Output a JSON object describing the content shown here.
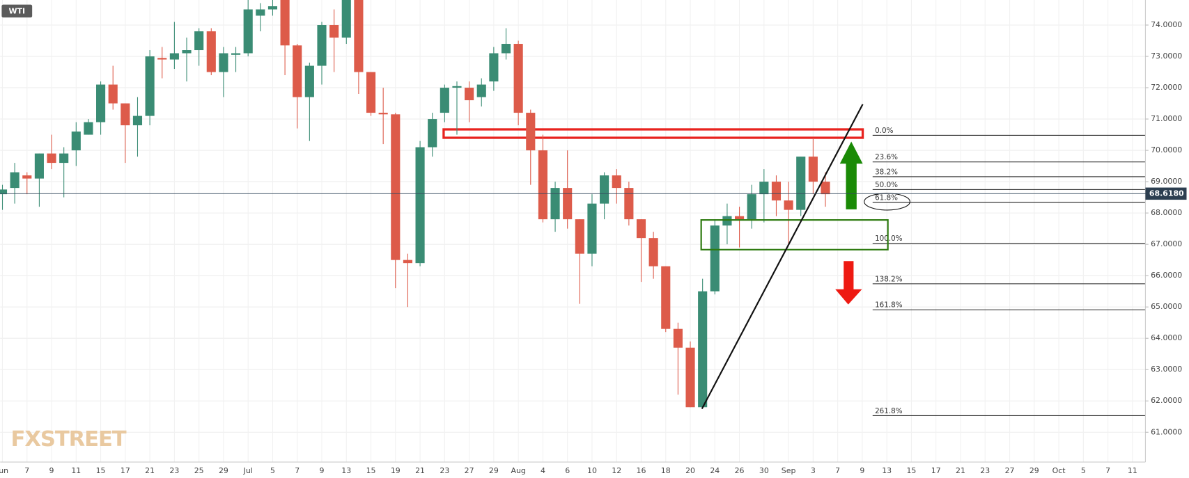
{
  "chart_data": {
    "type": "candlestick",
    "title": "WTI",
    "watermark": "FXSTREET",
    "categories": [
      "Jun",
      null,
      "7",
      null,
      "9",
      null,
      "11",
      null,
      "15",
      null,
      "17",
      null,
      "21",
      null,
      "23",
      null,
      "25",
      null,
      "29",
      null,
      "Jul",
      null,
      "5",
      null,
      "7",
      null,
      "9",
      null,
      "13",
      null,
      "15",
      null,
      "19",
      null,
      "21",
      null,
      "23",
      null,
      "27",
      null,
      "29",
      null,
      "Aug",
      null,
      "4",
      null,
      "6",
      null,
      "10",
      null,
      "12",
      null,
      "16",
      null,
      "18",
      null,
      "20",
      null,
      "24",
      null,
      "26",
      null,
      "30",
      null,
      "Sep",
      null,
      "3",
      null,
      "7",
      null,
      "9",
      null,
      "13",
      null,
      "15",
      null,
      "17",
      null,
      "21",
      null,
      "23",
      null,
      "27",
      null,
      "29",
      null,
      "Oct",
      null,
      "5",
      null,
      "7",
      null,
      "11"
    ],
    "open": [
      68.6,
      68.8,
      69.2,
      69.1,
      69.9,
      69.6,
      70.0,
      70.5,
      70.9,
      72.1,
      71.5,
      70.8,
      71.1,
      72.95,
      72.9,
      73.1,
      73.2,
      73.8,
      72.5,
      73.05,
      73.1,
      74.3,
      74.5,
      74.8,
      73.35,
      71.7,
      72.7,
      74.0,
      73.6,
      74.9,
      72.5,
      71.2,
      71.15,
      66.5,
      66.4,
      70.1,
      71.2,
      72.0,
      72.0,
      71.7,
      72.2,
      73.1,
      73.4,
      71.2,
      70.0,
      67.8,
      68.8,
      67.8,
      66.7,
      68.3,
      69.2,
      68.8,
      67.8,
      67.2,
      66.3,
      64.3,
      63.7,
      61.8,
      65.5,
      67.6,
      67.9,
      67.8,
      68.6,
      69.0,
      68.4,
      68.1,
      69.8,
      69.0,
      null,
      null,
      null,
      null,
      null,
      null,
      null,
      null,
      null,
      null,
      null,
      null,
      null,
      null,
      null,
      null,
      null,
      null,
      null,
      null,
      null,
      null,
      null,
      null,
      null
    ],
    "high": [
      68.9,
      69.6,
      69.3,
      69.9,
      70.5,
      70.1,
      70.9,
      71.0,
      72.2,
      72.7,
      71.5,
      71.7,
      73.2,
      73.3,
      74.1,
      73.6,
      73.9,
      73.9,
      73.3,
      73.3,
      74.8,
      74.7,
      75.0,
      74.9,
      73.4,
      72.8,
      74.1,
      74.5,
      75.0,
      75.0,
      72.5,
      72.0,
      71.2,
      66.7,
      70.3,
      71.2,
      72.1,
      72.2,
      72.2,
      72.3,
      73.3,
      73.9,
      73.5,
      71.3,
      70.5,
      69.0,
      70.0,
      67.8,
      68.6,
      69.3,
      69.4,
      69.0,
      67.8,
      67.4,
      66.3,
      64.5,
      63.9,
      65.9,
      67.8,
      68.3,
      68.2,
      68.9,
      69.4,
      69.2,
      69.0,
      69.8,
      70.4,
      69.3,
      null,
      null,
      null,
      null,
      null,
      null,
      null,
      null,
      null,
      null,
      null,
      null,
      null,
      null,
      null,
      null,
      null,
      null,
      null,
      null,
      null,
      null,
      null,
      null,
      null
    ],
    "low": [
      68.1,
      68.3,
      68.6,
      68.2,
      69.4,
      68.5,
      69.5,
      70.5,
      70.5,
      71.3,
      69.6,
      69.8,
      70.8,
      72.3,
      72.6,
      72.2,
      72.7,
      72.4,
      71.7,
      72.5,
      73.0,
      73.8,
      74.3,
      72.4,
      70.7,
      70.3,
      72.1,
      72.5,
      73.4,
      71.8,
      71.1,
      70.2,
      65.6,
      65.0,
      66.3,
      69.8,
      70.9,
      70.5,
      70.9,
      71.4,
      71.9,
      72.9,
      70.8,
      68.9,
      67.7,
      67.4,
      67.5,
      65.1,
      66.3,
      67.8,
      68.3,
      67.6,
      65.8,
      65.9,
      64.2,
      62.2,
      61.8,
      61.8,
      65.4,
      67.0,
      66.9,
      67.5,
      67.7,
      67.9,
      67.0,
      67.9,
      68.6,
      68.2,
      null,
      null,
      null,
      null,
      null,
      null,
      null,
      null,
      null,
      null,
      null,
      null,
      null,
      null,
      null,
      null,
      null,
      null,
      null,
      null,
      null,
      null,
      null,
      null,
      null
    ],
    "close": [
      68.75,
      69.3,
      69.1,
      69.9,
      69.6,
      69.9,
      70.6,
      70.9,
      72.1,
      71.5,
      70.8,
      71.1,
      73.0,
      72.9,
      73.1,
      73.2,
      73.8,
      72.5,
      73.1,
      73.1,
      74.5,
      74.5,
      74.6,
      73.35,
      71.7,
      72.7,
      74.0,
      73.6,
      74.9,
      72.5,
      71.2,
      71.15,
      66.5,
      66.4,
      70.1,
      71.0,
      72.0,
      72.05,
      71.6,
      72.1,
      73.1,
      73.4,
      71.2,
      70.0,
      67.8,
      68.8,
      67.8,
      66.7,
      68.3,
      69.2,
      68.8,
      67.8,
      67.2,
      66.3,
      64.3,
      63.7,
      61.8,
      65.5,
      67.6,
      67.9,
      67.8,
      68.6,
      69.0,
      68.4,
      68.1,
      69.8,
      69.0,
      68.6,
      null,
      null,
      null,
      null,
      null,
      null,
      null,
      null,
      null,
      null,
      null,
      null,
      null,
      null,
      null,
      null,
      null,
      null,
      null,
      null,
      null,
      null,
      null,
      null,
      null
    ],
    "up_color": "#3a8c74",
    "down_color": "#dd5b4a",
    "ylim": [
      60.05,
      74.8
    ],
    "yticks": [
      {
        "value": 61,
        "label": "61.0000"
      },
      {
        "value": 62,
        "label": "62.0000"
      },
      {
        "value": 63,
        "label": "63.0000"
      },
      {
        "value": 64,
        "label": "64.0000"
      },
      {
        "value": 65,
        "label": "65.0000"
      },
      {
        "value": 66,
        "label": "66.0000"
      },
      {
        "value": 67,
        "label": "67.0000"
      },
      {
        "value": 68,
        "label": "68.0000"
      },
      {
        "value": 69,
        "label": "69.0000"
      },
      {
        "value": 70,
        "label": "70.0000"
      },
      {
        "value": 71,
        "label": "71.0000"
      },
      {
        "value": 72,
        "label": "72.0000"
      },
      {
        "value": 73,
        "label": "73.0000"
      },
      {
        "value": 74,
        "label": "74.0000"
      }
    ],
    "grid": true,
    "last_price": {
      "value": 68.618,
      "label": "68.6180"
    },
    "fib_levels": [
      {
        "ratio_label": "0.0%",
        "price": 70.48
      },
      {
        "ratio_label": "23.6%",
        "price": 69.63
      },
      {
        "ratio_label": "38.2%",
        "price": 69.16
      },
      {
        "ratio_label": "50.0%",
        "price": 68.75
      },
      {
        "ratio_label": "61.8%",
        "price": 68.34
      },
      {
        "ratio_label": "100.0%",
        "price": 67.03
      },
      {
        "ratio_label": "138.2%",
        "price": 65.74
      },
      {
        "ratio_label": "161.8%",
        "price": 64.91
      },
      {
        "ratio_label": "261.8%",
        "price": 61.53
      }
    ]
  }
}
